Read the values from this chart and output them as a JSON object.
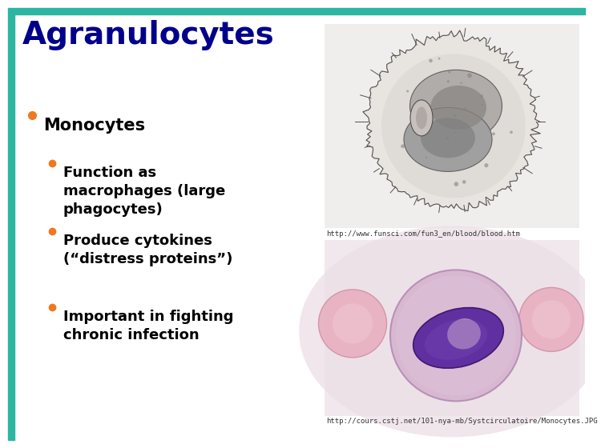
{
  "background_color": "#ffffff",
  "top_bar_color": "#2db5a3",
  "left_bar_color": "#2db5a3",
  "title": "Agranulocytes",
  "title_color": "#00008b",
  "title_fontsize": 28,
  "bullet_color": "#f07820",
  "text_color": "#000000",
  "bullet1": "Monocytes",
  "bullet1_fontsize": 15,
  "sub_bullets": [
    "Function as\nmacrophages (large\nphagocytes)",
    "Produce cytokines\n(“distress proteins”)",
    "Important in fighting\nchronic infection"
  ],
  "sub_bullet_fontsize": 13,
  "url1": "http://www.funsci.com/fun3_en/blood/blood.htm",
  "url1_fontsize": 6.5,
  "url2": "http://cours.cstj.net/101-nya-mb/Systcirculatoire/Monocytes.JPG",
  "url2_fontsize": 6.5,
  "img1_bg": "#f0eeec",
  "img2_bg": "#e8dce0",
  "img1_cell_outer": "#c8c4c0",
  "img1_cell_mid": "#a8a4a0",
  "img1_cell_inner": "#707878",
  "img2_rbc1": "#e8b8c0",
  "img2_rbc2": "#e0a8b8",
  "img2_mono_outer": "#d0a8c8",
  "img2_mono_nuc": "#6030a0"
}
